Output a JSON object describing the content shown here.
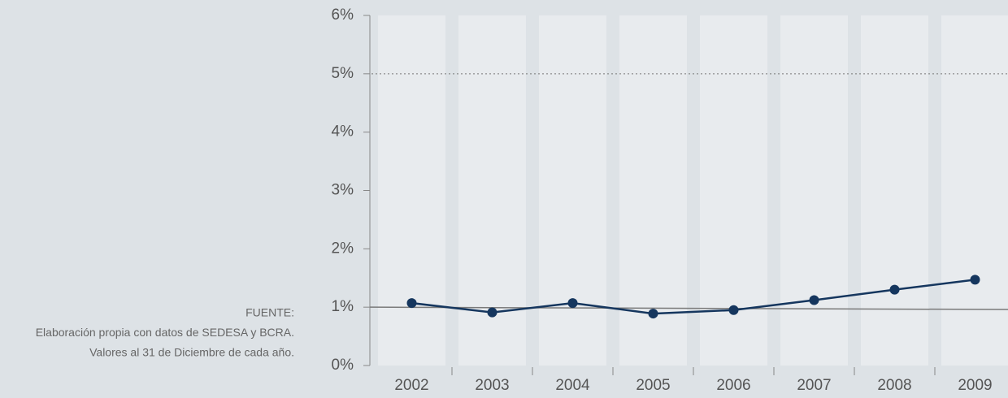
{
  "chart_data": {
    "type": "line",
    "categories": [
      "2002",
      "2003",
      "2004",
      "2005",
      "2006",
      "2007",
      "2008",
      "2009"
    ],
    "series": [
      {
        "color": "#15365e",
        "values": [
          1.07,
          0.91,
          1.07,
          0.89,
          0.95,
          1.12,
          1.3,
          1.47
        ]
      }
    ],
    "trend": {
      "color": "#7a7a7a",
      "values": [
        1.0,
        0.96
      ]
    },
    "threshold": 5,
    "ylim": [
      0,
      6
    ],
    "yticks": [
      {
        "value": 0,
        "label": "0%"
      },
      {
        "value": 1,
        "label": "1%"
      },
      {
        "value": 2,
        "label": "2%"
      },
      {
        "value": 3,
        "label": "3%"
      },
      {
        "value": 4,
        "label": "4%"
      },
      {
        "value": 5,
        "label": "5%"
      },
      {
        "value": 6,
        "label": "6%"
      }
    ],
    "source": [
      "FUENTE:",
      "Elaboración propia con datos de SEDESA y BCRA.",
      "Valores al 31 de Diciembre de cada año."
    ]
  }
}
